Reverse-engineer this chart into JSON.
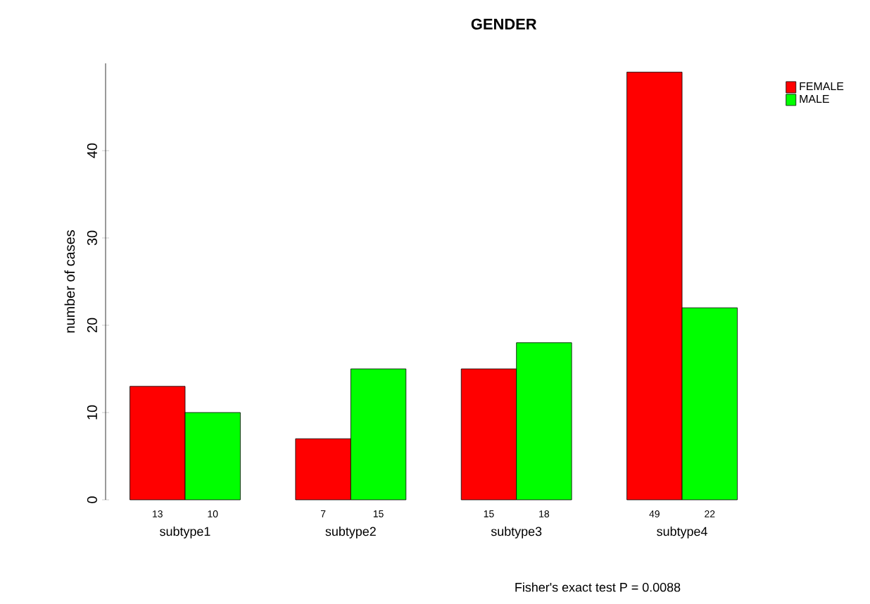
{
  "chart_data": {
    "type": "bar",
    "title": "GENDER",
    "ylabel": "number of cases",
    "categories": [
      "subtype1",
      "subtype2",
      "subtype3",
      "subtype4"
    ],
    "series": [
      {
        "name": "FEMALE",
        "color": "#ff0000",
        "values": [
          13,
          7,
          15,
          49
        ]
      },
      {
        "name": "MALE",
        "color": "#00ff00",
        "values": [
          10,
          15,
          18,
          22
        ]
      }
    ],
    "ylim": [
      0,
      50
    ],
    "yticks": [
      0,
      10,
      20,
      30,
      40
    ],
    "data_labels": true,
    "legend": "top right",
    "annotations": [
      "Fisher's exact test P = 0.0088"
    ]
  }
}
